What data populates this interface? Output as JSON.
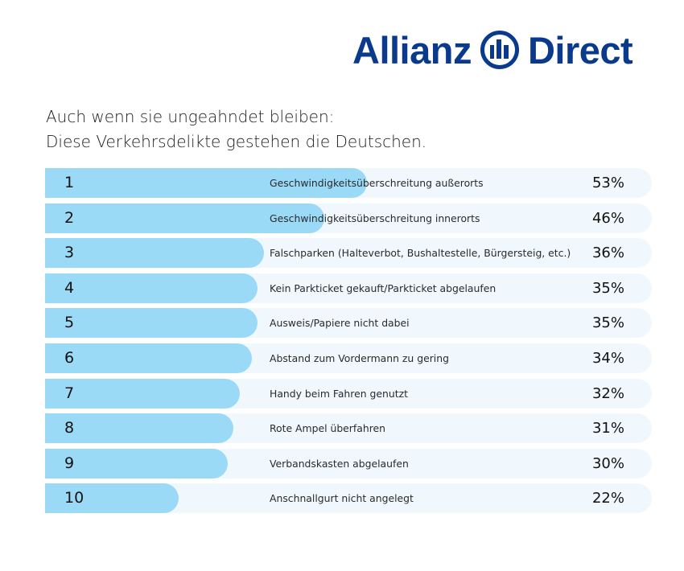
{
  "brand": {
    "name_left": "Allianz",
    "name_right": "Direct",
    "color": "#0a3a8c",
    "icon": "allianz-eagle-bars-icon"
  },
  "title_lines": [
    "Auch wenn sie ungeahndet bleiben:",
    "Diese Verkehrsdelikte gestehen die Deutschen."
  ],
  "colors": {
    "bar_fill": "#9bdaf7",
    "bar_track": "#f0f8fd"
  },
  "chart_data": {
    "type": "bar",
    "orientation": "horizontal",
    "title": "Auch wenn sie ungeahndet bleiben: Diese Verkehrsdelikte gestehen die Deutschen.",
    "xlabel": "",
    "ylabel": "",
    "xlim": [
      0,
      100
    ],
    "unit": "%",
    "grid": false,
    "ranks": [
      "1",
      "2",
      "3",
      "4",
      "5",
      "6",
      "7",
      "8",
      "9",
      "10"
    ],
    "categories": [
      "Geschwindigkeitsüberschreitung außerorts",
      "Geschwindigkeitsüberschreitung innerorts",
      "Falschparken (Halteverbot, Bushaltestelle, Bürgersteig, etc.)",
      "Kein Parkticket gekauft/Parkticket abgelaufen",
      "Ausweis/Papiere nicht dabei",
      "Abstand zum Vordermann zu gering",
      "Handy beim Fahren genutzt",
      "Rote Ampel überfahren",
      "Verbandskasten abgelaufen",
      "Anschnallgurt nicht angelegt"
    ],
    "values": [
      53,
      46,
      36,
      35,
      35,
      34,
      32,
      31,
      30,
      22
    ],
    "value_labels": [
      "53%",
      "46%",
      "36%",
      "35%",
      "35%",
      "34%",
      "32%",
      "31%",
      "30%",
      "22%"
    ]
  }
}
